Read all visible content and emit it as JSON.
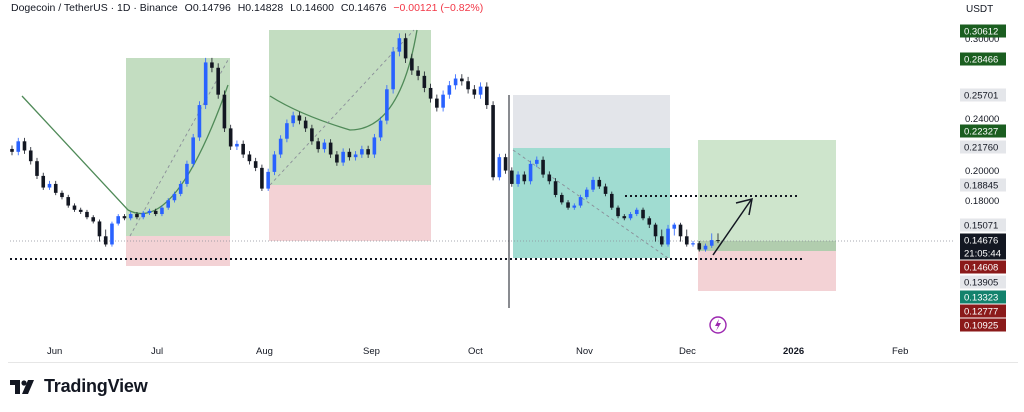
{
  "header": {
    "symbol": "Dogecoin / TetherUS · 1D · Binance",
    "open": "O0.14796",
    "high": "H0.14828",
    "low": "L0.14600",
    "close": "C0.14676",
    "change": "−0.00121 (−0.82%)"
  },
  "currency": "USDT",
  "brand": {
    "name": "TradingView"
  },
  "colors": {
    "up": "#2962ff",
    "down": "#131722",
    "profit_zone": "#b9d7b6",
    "stop_zone": "#f2cdd0",
    "teal_zone": "#8fd6c9",
    "grey_zone": "#e3e5ea",
    "arc": "#4f8a58"
  },
  "chart_data": {
    "type": "candlestick",
    "symbol": "Dogecoin / TetherUS",
    "interval": "1D",
    "exchange": "Binance",
    "x_ticks": [
      "Jun",
      "Jul",
      "Aug",
      "Sep",
      "Oct",
      "Nov",
      "Dec",
      "2026",
      "Feb"
    ],
    "y_ticks": [
      "0.30000",
      "0.24000",
      "0.20000",
      "0.18000"
    ],
    "price_labels": [
      {
        "value": "0.30612",
        "style": "green"
      },
      {
        "value": "0.28466",
        "style": "green"
      },
      {
        "value": "0.25701",
        "style": "grey"
      },
      {
        "value": "0.22327",
        "style": "green"
      },
      {
        "value": "0.21760",
        "style": "grey"
      },
      {
        "value": "0.18845",
        "style": "grey"
      },
      {
        "value": "0.15071",
        "style": "grey"
      },
      {
        "value": "0.14676",
        "style": "current"
      },
      {
        "value": "21:05:44",
        "style": "current"
      },
      {
        "value": "0.14608",
        "style": "red"
      },
      {
        "value": "0.13905",
        "style": "grey"
      },
      {
        "value": "0.13323",
        "style": "teal"
      },
      {
        "value": "0.12777",
        "style": "red"
      },
      {
        "value": "0.10925",
        "style": "red"
      }
    ],
    "current_price": 0.14676,
    "support_level": 0.139,
    "target_level": 0.188,
    "trend_closes": [
      0.214,
      0.222,
      0.215,
      0.207,
      0.196,
      0.187,
      0.19,
      0.182,
      0.178,
      0.17,
      0.166,
      0.164,
      0.159,
      0.155,
      0.148,
      0.144,
      0.153,
      0.16,
      0.158,
      0.162,
      0.159,
      0.163,
      0.165,
      0.162,
      0.168,
      0.175,
      0.181,
      0.19,
      0.205,
      0.225,
      0.25,
      0.282,
      0.278,
      0.258,
      0.232,
      0.218,
      0.22,
      0.212,
      0.207,
      0.202,
      0.186,
      0.199,
      0.212,
      0.224,
      0.236,
      0.242,
      0.238,
      0.232,
      0.222,
      0.216,
      0.221,
      0.212,
      0.206,
      0.214,
      0.21,
      0.212,
      0.216,
      0.212,
      0.225,
      0.238,
      0.262,
      0.29,
      0.3,
      0.285,
      0.276,
      0.272,
      0.263,
      0.255,
      0.248,
      0.258,
      0.265,
      0.27,
      0.268,
      0.262,
      0.258,
      0.264,
      0.25,
      0.195,
      0.21,
      0.2,
      0.19,
      0.197,
      0.192,
      0.205,
      0.208,
      0.197,
      0.192,
      0.18,
      0.173,
      0.168,
      0.17,
      0.178,
      0.185,
      0.193,
      0.188,
      0.181,
      0.168,
      0.16,
      0.158,
      0.162,
      0.166,
      0.158,
      0.152,
      0.148,
      0.144,
      0.15,
      0.152,
      0.148,
      0.144,
      0.145,
      0.14,
      0.143,
      0.147,
      0.1468
    ]
  }
}
